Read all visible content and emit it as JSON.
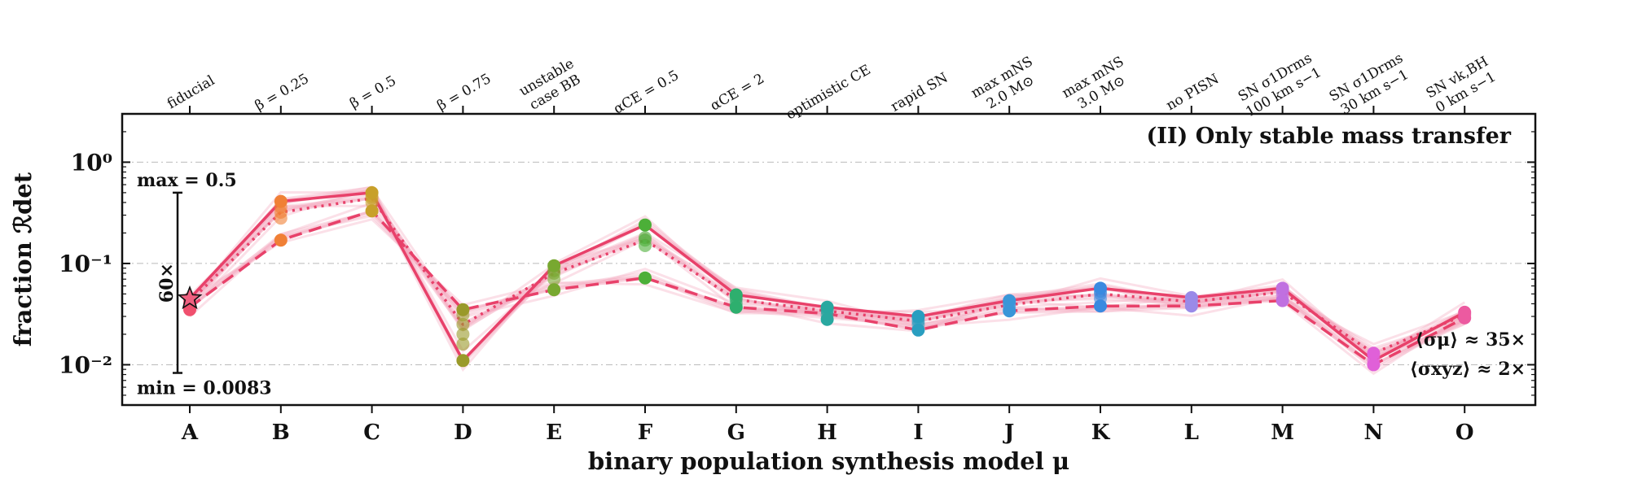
{
  "chart_data": {
    "type": "line",
    "title": "(II) Only stable mass transfer",
    "xlabel": "binary population synthesis model μ",
    "ylabel": "fraction ℛdet",
    "yscale": "log",
    "ylim": [
      0.004,
      3.0
    ],
    "grid": "horizontal dash-dot at decades",
    "categories": [
      "A",
      "B",
      "C",
      "D",
      "E",
      "F",
      "G",
      "H",
      "I",
      "J",
      "K",
      "L",
      "M",
      "N",
      "O"
    ],
    "top_labels": [
      [
        "fiducial"
      ],
      [
        "β = 0.25"
      ],
      [
        "β = 0.5"
      ],
      [
        "β = 0.75"
      ],
      [
        "unstable",
        "case BB"
      ],
      [
        "αCE = 0.5"
      ],
      [
        "αCE = 2"
      ],
      [
        "optimistic CE"
      ],
      [
        "rapid SN"
      ],
      [
        "max mNS",
        "2.0 M⊙"
      ],
      [
        "max mNS",
        "3.0 M⊙"
      ],
      [
        "no PISN"
      ],
      [
        "SN σ1Drms",
        "100 km s−1"
      ],
      [
        "SN σ1Drms",
        "30 km s−1"
      ],
      [
        "SN vk,BH",
        "0 km s−1"
      ]
    ],
    "yticks": [
      {
        "value": 1.0,
        "label": "10⁰"
      },
      {
        "value": 0.1,
        "label": "10⁻¹"
      },
      {
        "value": 0.01,
        "label": "10⁻²"
      }
    ],
    "point_colors": [
      "#f0506e",
      "#f08036",
      "#c8a02a",
      "#9a9a2a",
      "#78a830",
      "#4caf38",
      "#2eaf6e",
      "#2aa8a0",
      "#2a9ec0",
      "#3a96d8",
      "#3a8ae0",
      "#9a8ae8",
      "#c070e0",
      "#e060d8",
      "#ec5aa0"
    ],
    "line_color": "#e8416a",
    "series": [
      {
        "style": "solid",
        "values": [
          0.045,
          0.41,
          0.5,
          0.011,
          0.095,
          0.24,
          0.049,
          0.037,
          0.03,
          0.043,
          0.057,
          0.046,
          0.057,
          0.011,
          0.033
        ]
      },
      {
        "style": "dotted",
        "values": [
          0.042,
          0.32,
          0.44,
          0.025,
          0.08,
          0.17,
          0.044,
          0.034,
          0.027,
          0.039,
          0.05,
          0.042,
          0.052,
          0.013,
          0.031
        ]
      },
      {
        "style": "dashed",
        "values": [
          0.037,
          0.17,
          0.33,
          0.035,
          0.055,
          0.072,
          0.037,
          0.032,
          0.022,
          0.034,
          0.038,
          0.038,
          0.043,
          0.01,
          0.029
        ]
      }
    ],
    "column_points": [
      [
        0.045,
        0.042,
        0.04,
        0.037,
        0.035
      ],
      [
        0.41,
        0.36,
        0.32,
        0.28,
        0.17
      ],
      [
        0.5,
        0.46,
        0.44,
        0.4,
        0.33
      ],
      [
        0.035,
        0.031,
        0.025,
        0.02,
        0.016,
        0.011
      ],
      [
        0.095,
        0.085,
        0.08,
        0.07,
        0.055
      ],
      [
        0.24,
        0.18,
        0.17,
        0.15,
        0.072
      ],
      [
        0.049,
        0.046,
        0.044,
        0.04,
        0.037
      ],
      [
        0.037,
        0.035,
        0.034,
        0.031,
        0.028
      ],
      [
        0.03,
        0.029,
        0.027,
        0.025,
        0.022
      ],
      [
        0.043,
        0.041,
        0.039,
        0.036,
        0.034
      ],
      [
        0.057,
        0.053,
        0.05,
        0.045,
        0.038
      ],
      [
        0.046,
        0.044,
        0.042,
        0.04,
        0.038
      ],
      [
        0.057,
        0.055,
        0.052,
        0.048,
        0.043
      ],
      [
        0.013,
        0.012,
        0.011,
        0.01
      ],
      [
        0.033,
        0.032,
        0.031,
        0.029
      ]
    ],
    "range_bar": {
      "max_label": "max = 0.5",
      "min_label": "min = 0.0083",
      "max": 0.5,
      "min": 0.0083,
      "factor_label": "60×"
    },
    "spread_annotations": [
      "⟨σμ⟩ ≈ 35×",
      "⟨σxyz⟩ ≈ 2×"
    ],
    "fiducial_marker": "star"
  }
}
